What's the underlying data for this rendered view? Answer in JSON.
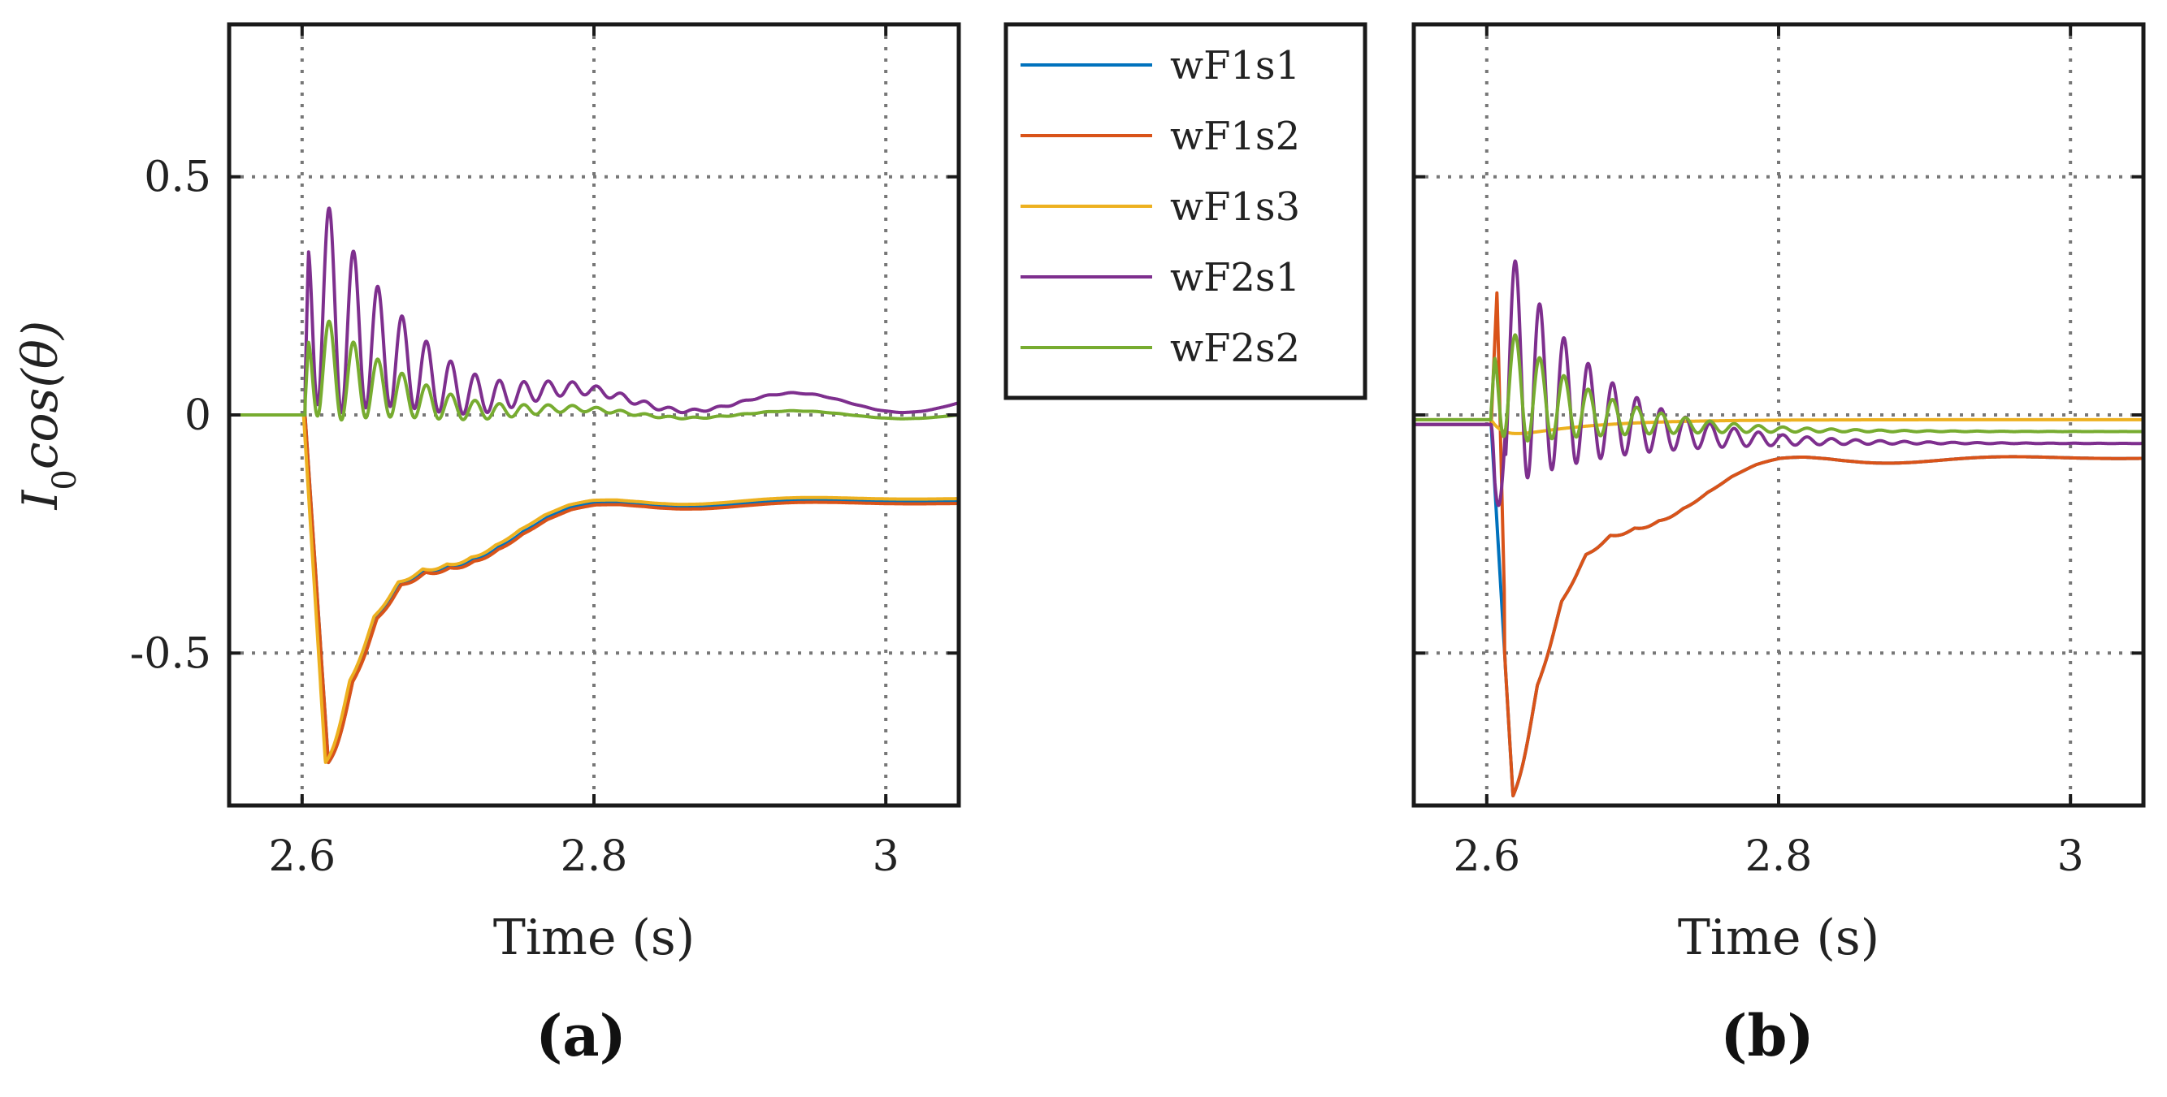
{
  "figure": {
    "legend": [
      {
        "name": "wF1s1",
        "color": "#0072BD"
      },
      {
        "name": "wF1s2",
        "color": "#D95319"
      },
      {
        "name": "wF1s3",
        "color": "#EDB120"
      },
      {
        "name": "wF2s1",
        "color": "#7E2F8E"
      },
      {
        "name": "wF2s2",
        "color": "#77AC30"
      }
    ]
  },
  "chart_data": [
    {
      "type": "line",
      "panel_label": "(a)",
      "title": "",
      "xlabel": "Time (s)",
      "ylabel_main": "I",
      "ylabel_sub": "0",
      "ylabel_rest": "cos(θ)",
      "xlim": [
        2.55,
        3.05
      ],
      "ylim": [
        -0.82,
        0.82
      ],
      "xticks": [
        2.6,
        2.8,
        3.0
      ],
      "xtick_labels": [
        "2.6",
        "2.8",
        "3"
      ],
      "yticks": [
        0.5,
        0,
        -0.5
      ],
      "ytick_labels": [
        "0.5",
        "0",
        "-0.5"
      ],
      "grid": true,
      "series": [
        {
          "name": "wF1s1",
          "color": "#0072BD",
          "model": {
            "kind": "dip",
            "base": 0,
            "t0": 2.602,
            "tmin": 2.618,
            "min": -0.73,
            "final": -0.18,
            "tau": 0.055,
            "freq": 60,
            "damp": 0.05,
            "rip": 0.05,
            "osc_amp": 0.12,
            "osc_freq": 6.7
          }
        },
        {
          "name": "wF1s2",
          "color": "#D95319",
          "model": {
            "kind": "dip",
            "base": 0,
            "t0": 2.602,
            "tmin": 2.618,
            "min": -0.73,
            "final": -0.185,
            "tau": 0.055,
            "freq": 60,
            "damp": 0.05,
            "rip": 0.05,
            "osc_amp": 0.12,
            "osc_freq": 6.7
          }
        },
        {
          "name": "wF1s3",
          "color": "#EDB120",
          "model": {
            "kind": "dip",
            "base": 0,
            "t0": 2.601,
            "tmin": 2.616,
            "min": -0.73,
            "final": -0.175,
            "tau": 0.055,
            "freq": 60,
            "damp": 0.05,
            "rip": 0.05,
            "osc_amp": 0.12,
            "osc_freq": 6.7
          }
        },
        {
          "name": "wF2s1",
          "color": "#7E2F8E",
          "model": {
            "kind": "osc",
            "base": 0,
            "t0": 2.602,
            "amp": 0.58,
            "offset": 0.25,
            "freq": 60,
            "damp": 0.06,
            "final": 0.025,
            "slow_amp": 0.02,
            "slow_freq": 6.7
          }
        },
        {
          "name": "wF2s2",
          "color": "#77AC30",
          "model": {
            "kind": "osc",
            "base": 0,
            "t0": 2.602,
            "amp": 0.28,
            "offset": 0.12,
            "freq": 60,
            "damp": 0.06,
            "final": 0.0,
            "slow_amp": 0.008,
            "slow_freq": 6.7
          }
        }
      ]
    },
    {
      "type": "line",
      "panel_label": "(b)",
      "title": "",
      "xlabel": "Time (s)",
      "xlim": [
        2.55,
        3.05
      ],
      "ylim": [
        -0.82,
        0.82
      ],
      "xticks": [
        2.6,
        2.8,
        3.0
      ],
      "xtick_labels": [
        "2.6",
        "2.8",
        "3"
      ],
      "yticks": [
        0.5,
        0,
        -0.5
      ],
      "grid": true,
      "series": [
        {
          "name": "wF1s1",
          "color": "#0072BD",
          "model": {
            "kind": "dip",
            "base": -0.02,
            "t0": 2.603,
            "tmin": 2.618,
            "min": -0.8,
            "final": -0.09,
            "tau": 0.05,
            "freq": 60,
            "damp": 0.045,
            "rip": 0.06,
            "osc_amp": 0.14,
            "osc_freq": 6.5
          }
        },
        {
          "name": "wF1s2",
          "color": "#D95319",
          "model": {
            "kind": "dip",
            "base": -0.02,
            "t0": 2.603,
            "tmin": 2.618,
            "min": -0.8,
            "final": -0.09,
            "tau": 0.05,
            "freq": 60,
            "damp": 0.045,
            "rip": 0.06,
            "osc_amp": 0.14,
            "osc_freq": 6.5,
            "spike": 0.28
          }
        },
        {
          "name": "wF1s3",
          "color": "#EDB120",
          "model": {
            "kind": "small",
            "base": -0.01,
            "t0": 2.603,
            "dip": -0.05,
            "final": -0.01,
            "tau": 0.05
          }
        },
        {
          "name": "wF2s1",
          "color": "#7E2F8E",
          "model": {
            "kind": "osc",
            "base": -0.02,
            "t0": 2.603,
            "amp": 0.62,
            "offset": 0.2,
            "freq": 60,
            "damp": 0.06,
            "final": -0.06,
            "slow_amp": 0.0,
            "slow_freq": 6.5,
            "dip_first": -0.17
          }
        },
        {
          "name": "wF2s2",
          "color": "#77AC30",
          "model": {
            "kind": "osc",
            "base": -0.01,
            "t0": 2.603,
            "amp": 0.3,
            "offset": 0.12,
            "freq": 60,
            "damp": 0.06,
            "final": -0.035,
            "slow_amp": 0.0,
            "slow_freq": 6.5
          }
        }
      ]
    }
  ]
}
